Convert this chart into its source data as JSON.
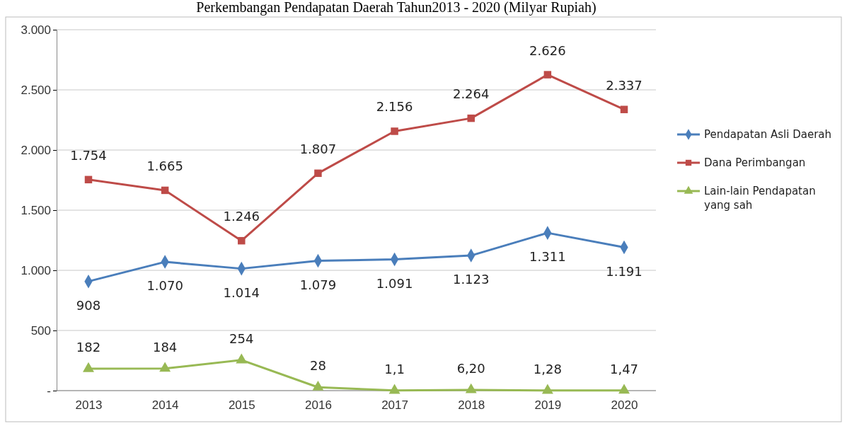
{
  "chart_data": {
    "type": "line",
    "title": "Perkembangan Pendapatan Daerah Tahun2013 - 2020 (Milyar Rupiah)",
    "categories": [
      "2013",
      "2014",
      "2015",
      "2016",
      "2017",
      "2018",
      "2019",
      "2020"
    ],
    "ylim": [
      0,
      3000
    ],
    "yticks": [
      {
        "value": 0,
        "label": "-"
      },
      500,
      {
        "value": 1000,
        "label": "1.000"
      },
      {
        "value": 1500,
        "label": "1.500"
      },
      {
        "value": 2000,
        "label": "2.000"
      },
      {
        "value": 2500,
        "label": "2.500"
      },
      {
        "value": 3000,
        "label": "3.000"
      }
    ],
    "grid": "y",
    "legend": "right",
    "series": [
      {
        "name": "Pendapatan Asli Daerah",
        "color": "#4a7ebb",
        "marker": "diamond",
        "values": [
          908,
          1070,
          1014,
          1079,
          1091,
          1123,
          1311,
          1191
        ],
        "value_labels": [
          "908",
          "1.070",
          "1.014",
          "1.079",
          "1.091",
          "1.123",
          "1.311",
          "1.191"
        ]
      },
      {
        "name": "Dana Perimbangan",
        "color": "#be4b48",
        "marker": "square",
        "values": [
          1754,
          1665,
          1246,
          1807,
          2156,
          2264,
          2626,
          2337
        ],
        "value_labels": [
          "1.754",
          "1.665",
          "1.246",
          "1.807",
          "2.156",
          "2.264",
          "2.626",
          "2.337"
        ]
      },
      {
        "name": "Lain-lain Pendapatan yang sah",
        "color": "#98b954",
        "marker": "triangle",
        "values": [
          182,
          184,
          254,
          28,
          1.1,
          6.2,
          1.28,
          1.47
        ],
        "value_labels": [
          "182",
          "184",
          "254",
          "28",
          "1,1",
          "6,20",
          "1,28",
          "1,47"
        ]
      }
    ]
  }
}
